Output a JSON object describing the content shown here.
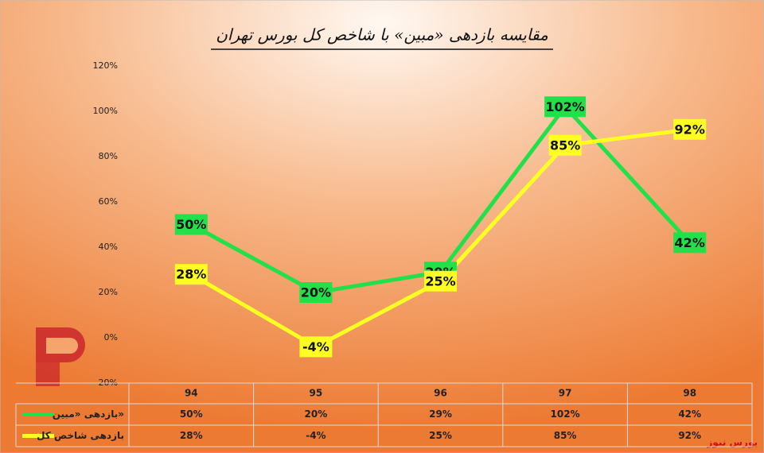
{
  "chart_data": {
    "type": "line",
    "title": "مقایسه بازدهی «مبین» با شاخص کل بورس تهران",
    "categories": [
      "94",
      "95",
      "96",
      "97",
      "98"
    ],
    "series": [
      {
        "name": "بازدهی «مبین»",
        "color": "#22e04a",
        "values": [
          50,
          20,
          29,
          102,
          42
        ],
        "value_labels": [
          "50%",
          "20%",
          "29%",
          "102%",
          "42%"
        ]
      },
      {
        "name": "بازدهی شاخص کل",
        "color": "#ffff22",
        "values": [
          28,
          -4,
          25,
          85,
          92
        ],
        "value_labels": [
          "28%",
          "-4%",
          "25%",
          "85%",
          "92%"
        ]
      }
    ],
    "ylim": [
      -20,
      120
    ],
    "yticks": [
      {
        "value": -20,
        "label": "-20%"
      },
      {
        "value": 0,
        "label": "0%"
      },
      {
        "value": 20,
        "label": "20%"
      },
      {
        "value": 40,
        "label": "40%"
      },
      {
        "value": 60,
        "label": "60%"
      },
      {
        "value": 80,
        "label": "80%"
      },
      {
        "value": 100,
        "label": "100%"
      },
      {
        "value": 120,
        "label": "120%"
      }
    ],
    "grid": false,
    "watermark": "بورس نیوز"
  }
}
